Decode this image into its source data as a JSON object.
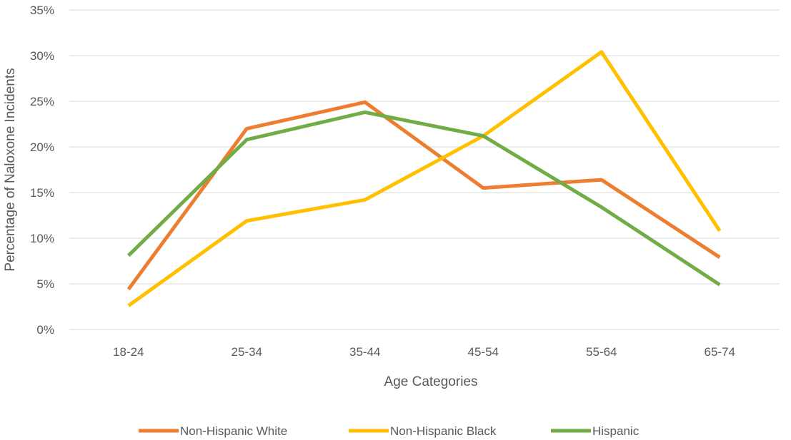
{
  "chart_data": {
    "type": "line",
    "title": "",
    "xlabel": "Age Categories",
    "ylabel": "Percentage of Naloxone Incidents",
    "categories": [
      "18-24",
      "25-34",
      "35-44",
      "45-54",
      "55-64",
      "65-74"
    ],
    "ylim": [
      0,
      35
    ],
    "yticks": [
      0,
      5,
      10,
      15,
      20,
      25,
      30,
      35
    ],
    "ytick_labels": [
      "0%",
      "5%",
      "10%",
      "15%",
      "20%",
      "25%",
      "30%",
      "35%"
    ],
    "grid": "horizontal",
    "legend_position": "bottom",
    "series": [
      {
        "name": "Non-Hispanic White",
        "color": "#ED7D31",
        "values": [
          4.4,
          22.0,
          24.9,
          15.5,
          16.4,
          7.9
        ]
      },
      {
        "name": "Non-Hispanic Black",
        "color": "#FFC000",
        "values": [
          2.6,
          11.9,
          14.2,
          21.2,
          30.4,
          10.8
        ]
      },
      {
        "name": "Hispanic",
        "color": "#70AD47",
        "values": [
          8.1,
          20.8,
          23.8,
          21.2,
          13.4,
          4.9
        ]
      }
    ]
  }
}
